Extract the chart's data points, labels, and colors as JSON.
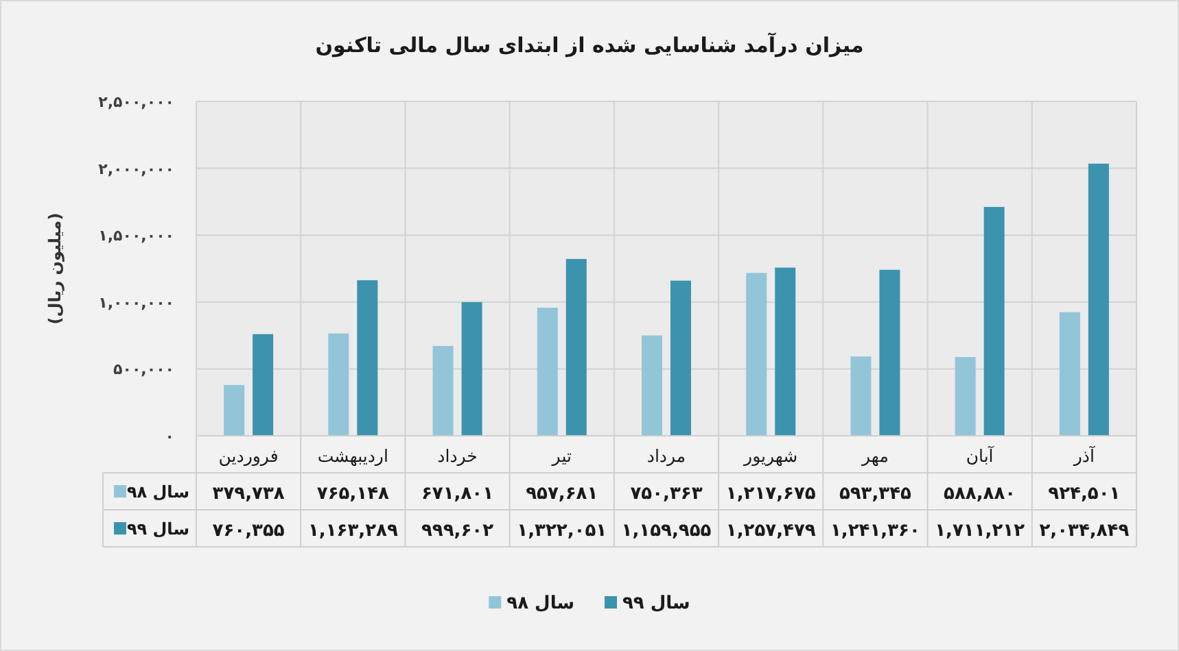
{
  "chart_data": {
    "type": "bar",
    "title": "میزان درآمد شناسایی شده از ابتدای سال مالی تاکنون",
    "ylabel": "(میلیون ریال)",
    "categories": [
      "فروردین",
      "اردیبهشت",
      "خرداد",
      "تیر",
      "مرداد",
      "شهریور",
      "مهر",
      "آبان",
      "آذر"
    ],
    "series": [
      {
        "name": "سال ۹۸",
        "color": "#92c5d8",
        "values": [
          379738,
          765148,
          671801,
          957681,
          750363,
          1217675,
          593345,
          588880,
          924501
        ],
        "value_labels": [
          "۳۷۹,۷۳۸",
          "۷۶۵,۱۴۸",
          "۶۷۱,۸۰۱",
          "۹۵۷,۶۸۱",
          "۷۵۰,۳۶۳",
          "۱,۲۱۷,۶۷۵",
          "۵۹۳,۳۴۵",
          "۵۸۸,۸۸۰",
          "۹۲۴,۵۰۱"
        ]
      },
      {
        "name": "سال ۹۹",
        "color": "#3b93ae",
        "values": [
          760355,
          1163289,
          999602,
          1322051,
          1159955,
          1257479,
          1241360,
          1711212,
          2034849
        ],
        "value_labels": [
          "۷۶۰,۳۵۵",
          "۱,۱۶۳,۲۸۹",
          "۹۹۹,۶۰۲",
          "۱,۳۲۲,۰۵۱",
          "۱,۱۵۹,۹۵۵",
          "۱,۲۵۷,۴۷۹",
          "۱,۲۴۱,۳۶۰",
          "۱,۷۱۱,۲۱۲",
          "۲,۰۳۴,۸۴۹"
        ]
      }
    ],
    "ylim": [
      0,
      2500000
    ],
    "yticks": [
      {
        "value": 0,
        "label": "۰"
      },
      {
        "value": 500000,
        "label": "۵۰۰,۰۰۰"
      },
      {
        "value": 1000000,
        "label": "۱,۰۰۰,۰۰۰"
      },
      {
        "value": 1500000,
        "label": "۱,۵۰۰,۰۰۰"
      },
      {
        "value": 2000000,
        "label": "۲,۰۰۰,۰۰۰"
      },
      {
        "value": 2500000,
        "label": "۲,۵۰۰,۰۰۰"
      }
    ],
    "grid": true,
    "legend": "bottom"
  }
}
